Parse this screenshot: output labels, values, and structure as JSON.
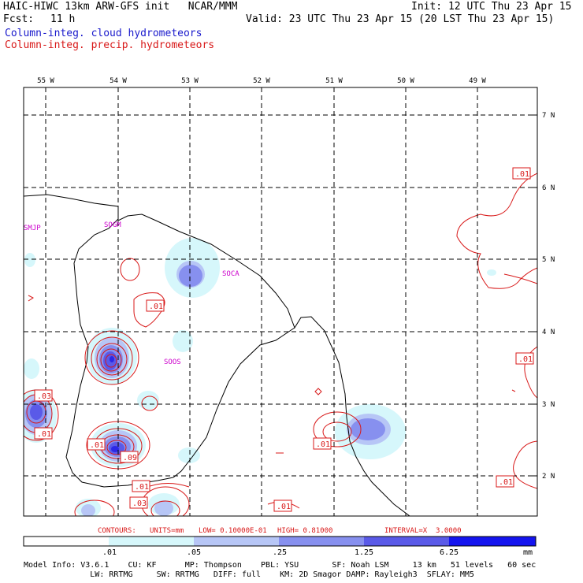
{
  "header": {
    "title": "HAIC-HIWC 13km ARW-GFS init   NCAR/MMM",
    "init": "Init: 12 UTC Thu 23 Apr 15",
    "fcst_label": "Fcst:",
    "fcst_value": "11 h",
    "valid": "Valid: 23 UTC Thu 23 Apr 15 (20 LST Thu 23 Apr 15)",
    "legend_cloud": "Column-integ. cloud hydrometeors",
    "legend_precip": "Column-integ. precip. hydrometeors"
  },
  "colors": {
    "cloud_text": "#1a1acc",
    "precip_text": "#d81818",
    "shade_1": "#d6f7fb",
    "shade_2": "#b7c6f6",
    "shade_3": "#8790ef",
    "shade_4": "#5a5ae8",
    "shade_5": "#2c28e6",
    "shade_6": "#1414ef"
  },
  "map": {
    "lon_labels": [
      "55 W",
      "54 W",
      "53 W",
      "52 W",
      "51 W",
      "50 W",
      "49 W"
    ],
    "lat_labels": [
      "7 N",
      "6 N",
      "5 N",
      "4 N",
      "3 N",
      "2 N"
    ],
    "place_labels": [
      "SMJP",
      "SOGM",
      "SOCA",
      "SOOS"
    ],
    "contour_labels": [
      ".01",
      ".01",
      ".01",
      ".03",
      ".01",
      ".01",
      ".09",
      ".01",
      ".03",
      ".01",
      ".01",
      ".01"
    ]
  },
  "contour_info": {
    "contours": "CONTOURS:",
    "units": "UNITS=mm",
    "low": "LOW= 0.10000E-01",
    "high": "HIGH= 0.81000",
    "interval": "INTERVAL=X  3.0000"
  },
  "colorbar": {
    "labels": [
      ".01",
      ".05",
      ".25",
      "1.25",
      "6.25"
    ],
    "unit": "mm"
  },
  "footer": {
    "line1": "Model Info: V3.6.1    CU: KF      MP: Thompson    PBL: YSU       SF: Noah LSM     13 km   51 levels   60 sec",
    "line2": "              LW: RRTMG     SW: RRTMG   DIFF: full    KM: 2D Smagor DAMP: Rayleigh3  SFLAY: MM5"
  }
}
